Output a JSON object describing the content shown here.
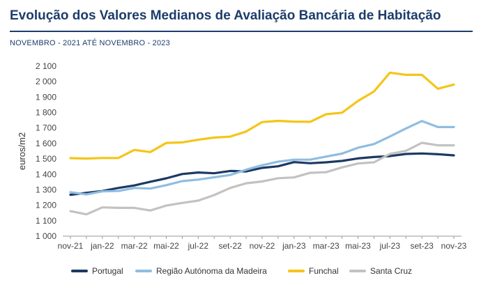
{
  "header": {
    "title": "Evolução dos Valores Medianos de Avaliação Bancária de Habitação",
    "subtitle": "NOVEMBRO - 2021 ATÉ NOVEMBRO - 2023"
  },
  "chart_data": {
    "type": "line",
    "title": "Evolução dos Valores Medianos de Avaliação Bancária de Habitação",
    "subtitle": "NOVEMBRO - 2021 ATÉ NOVEMBRO - 2023",
    "xlabel": "",
    "ylabel": "euros/m2",
    "ylim": [
      1000,
      2100
    ],
    "yticks": [
      "1 000",
      "1 100",
      "1 200",
      "1 300",
      "1 400",
      "1 500",
      "1 600",
      "1 700",
      "1 800",
      "1 900",
      "2 000",
      "2 100"
    ],
    "categories": [
      "nov-21",
      "dez-21",
      "jan-22",
      "fev-22",
      "mar-22",
      "abr-22",
      "mai-22",
      "jun-22",
      "jul-22",
      "ago-22",
      "set-22",
      "out-22",
      "nov-22",
      "dez-22",
      "jan-23",
      "fev-23",
      "mar-23",
      "abr-23",
      "mai-23",
      "jun-23",
      "jul-23",
      "ago-23",
      "set-23",
      "out-23",
      "nov-23"
    ],
    "x_tick_labels": [
      "nov-21",
      "jan-22",
      "mar-22",
      "mai-22",
      "jul-22",
      "set-22",
      "nov-22",
      "jan-23",
      "mar-23",
      "mai-23",
      "jul-23",
      "set-23",
      "nov-23"
    ],
    "grid": false,
    "legend_position": "bottom",
    "series": [
      {
        "name": "Portugal",
        "color": "#1b3a63",
        "values": [
          1268,
          1280,
          1292,
          1312,
          1328,
          1352,
          1374,
          1402,
          1412,
          1407,
          1422,
          1419,
          1442,
          1452,
          1479,
          1472,
          1478,
          1487,
          1503,
          1512,
          1518,
          1532,
          1535,
          1530,
          1523
        ]
      },
      {
        "name": "Região Autónoma da Madeira",
        "color": "#8fbde1",
        "values": [
          1284,
          1270,
          1290,
          1292,
          1312,
          1308,
          1330,
          1356,
          1366,
          1381,
          1396,
          1430,
          1459,
          1482,
          1495,
          1495,
          1515,
          1534,
          1572,
          1596,
          1645,
          1697,
          1745,
          1706,
          1706
        ]
      },
      {
        "name": "Funchal",
        "color": "#f5c518",
        "values": [
          1505,
          1502,
          1506,
          1506,
          1558,
          1544,
          1603,
          1607,
          1624,
          1638,
          1644,
          1677,
          1738,
          1746,
          1741,
          1740,
          1789,
          1799,
          1875,
          1936,
          2058,
          2044,
          2044,
          1954,
          1981
        ]
      },
      {
        "name": "Santa Cruz",
        "color": "#c2c2c2",
        "values": [
          1162,
          1141,
          1186,
          1183,
          1183,
          1166,
          1198,
          1215,
          1230,
          1266,
          1312,
          1342,
          1354,
          1375,
          1380,
          1410,
          1414,
          1445,
          1470,
          1478,
          1532,
          1552,
          1604,
          1588,
          1588
        ]
      }
    ]
  }
}
